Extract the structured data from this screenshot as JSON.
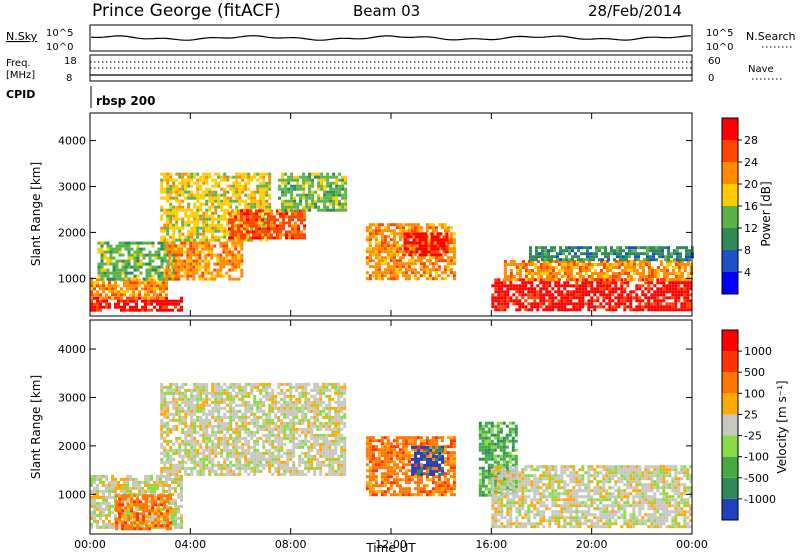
{
  "header": {
    "station": "Prince George (fitACF)",
    "beam": "Beam 03",
    "date": "28/Feb/2014"
  },
  "labels": {
    "nsky": "N.Sky",
    "nsearch": "N.Search",
    "freq_line1": "Freq.",
    "freq_line2": "[MHz]",
    "nave": "Nave",
    "cpid": "CPID",
    "cpid_value": "rbsp 200",
    "noise_ticks_left": [
      "10^5",
      "10^0"
    ],
    "noise_ticks_right": [
      "10^5",
      "10^0"
    ],
    "freq_ticks": [
      "18",
      "8"
    ],
    "nave_ticks": [
      "60",
      "0"
    ]
  },
  "chart_data": [
    {
      "type": "heatmap",
      "panel": "power",
      "ylabel": "Slant Range [km]",
      "xlabel": "",
      "x_ticks": [
        "00:00",
        "04:00",
        "08:00",
        "12:00",
        "16:00",
        "20:00",
        "00:00"
      ],
      "y_ticks": [
        "1000",
        "2000",
        "3000",
        "4000"
      ],
      "ylim": [
        180,
        4600
      ],
      "colorbar": {
        "label": "Power [dB]",
        "ticks": [
          "4",
          "8",
          "12",
          "16",
          "20",
          "24",
          "28"
        ],
        "colors": [
          "#0000ff",
          "#1e50c8",
          "#2e8b57",
          "#5ab44a",
          "#ffcc00",
          "#ff8c00",
          "#ff4500",
          "#ff0000"
        ]
      },
      "regions": [
        {
          "t0": 0.0,
          "t1": 3.6,
          "r0": 300,
          "r1": 600,
          "level": 7
        },
        {
          "t0": 0.0,
          "t1": 3.0,
          "r0": 600,
          "r1": 1000,
          "level": 5
        },
        {
          "t0": 0.3,
          "t1": 3.5,
          "r0": 1000,
          "r1": 1800,
          "level": 3
        },
        {
          "t0": 2.8,
          "t1": 7.2,
          "r0": 1800,
          "r1": 3300,
          "level": 4
        },
        {
          "t0": 3.0,
          "t1": 6.0,
          "r0": 1000,
          "r1": 1800,
          "level": 5
        },
        {
          "t0": 5.5,
          "t1": 8.5,
          "r0": 1900,
          "r1": 2500,
          "level": 6
        },
        {
          "t0": 7.5,
          "t1": 10.2,
          "r0": 2500,
          "r1": 3300,
          "level": 3
        },
        {
          "t0": 11.0,
          "t1": 14.5,
          "r0": 1000,
          "r1": 2200,
          "level": 5
        },
        {
          "t0": 12.5,
          "t1": 14.2,
          "r0": 1500,
          "r1": 2000,
          "level": 7
        },
        {
          "t0": 16.0,
          "t1": 24.0,
          "r0": 300,
          "r1": 1000,
          "level": 7
        },
        {
          "t0": 16.5,
          "t1": 24.0,
          "r0": 1000,
          "r1": 1400,
          "level": 5
        },
        {
          "t0": 17.5,
          "t1": 24.0,
          "r0": 1400,
          "r1": 1700,
          "level": 2
        }
      ]
    },
    {
      "type": "heatmap",
      "panel": "velocity",
      "ylabel": "Slant Range [km]",
      "xlabel": "Time UT",
      "x_ticks": [
        "00:00",
        "04:00",
        "08:00",
        "12:00",
        "16:00",
        "20:00",
        "00:00"
      ],
      "y_ticks": [
        "1000",
        "2000",
        "3000",
        "4000"
      ],
      "ylim": [
        180,
        4600
      ],
      "colorbar": {
        "label": "Velocity [m s⁻¹]",
        "ticks": [
          "1000",
          "500",
          "100",
          "25",
          "-25",
          "-100",
          "-500",
          "-1000"
        ],
        "colors": [
          "#2040c0",
          "#2e8b57",
          "#44aa44",
          "#88dd44",
          "#c8c8c0",
          "#ffaa00",
          "#ff7700",
          "#ff3300",
          "#ff0000"
        ]
      },
      "regions": [
        {
          "t0": 0.0,
          "t1": 3.6,
          "r0": 300,
          "r1": 1400,
          "level": 4
        },
        {
          "t0": 1.0,
          "t1": 3.2,
          "r0": 300,
          "r1": 1000,
          "level": 6
        },
        {
          "t0": 2.8,
          "t1": 10.2,
          "r0": 1400,
          "r1": 3300,
          "level": 4
        },
        {
          "t0": 11.0,
          "t1": 14.5,
          "r0": 1000,
          "r1": 2200,
          "level": 6
        },
        {
          "t0": 12.8,
          "t1": 14.0,
          "r0": 1400,
          "r1": 2000,
          "level": 0
        },
        {
          "t0": 15.5,
          "t1": 17.0,
          "r0": 1000,
          "r1": 2500,
          "level": 2
        },
        {
          "t0": 16.0,
          "t1": 24.0,
          "r0": 300,
          "r1": 1600,
          "level": 4
        }
      ]
    }
  ]
}
